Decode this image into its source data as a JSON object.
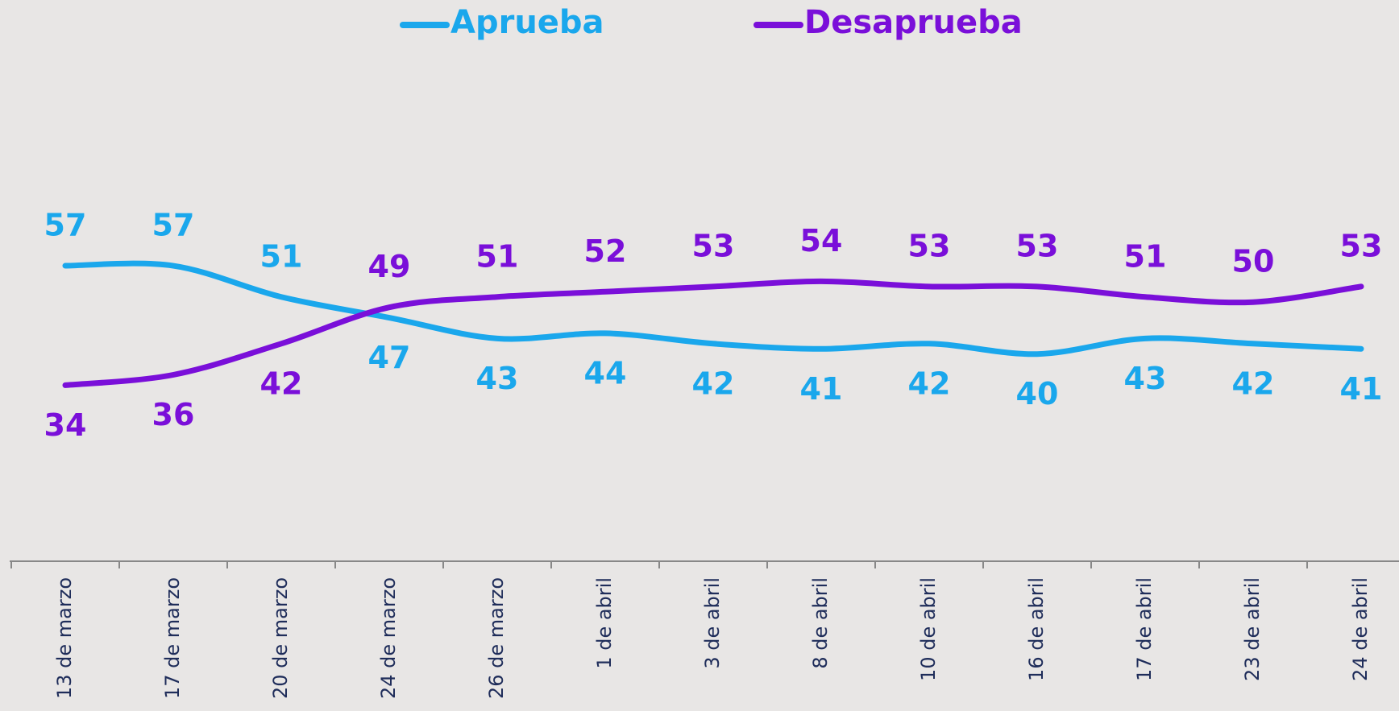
{
  "chart_data": {
    "type": "line",
    "categories": [
      "13 de marzo",
      "17 de marzo",
      "20 de marzo",
      "24 de marzo",
      "26 de marzo",
      "1 de abril",
      "3 de abril",
      "8 de abril",
      "10 de abril",
      "16 de abril",
      "17 de abril",
      "23 de abril",
      "24 de abril"
    ],
    "series": [
      {
        "name": "Aprueba",
        "color": "#1aa7ec",
        "values": [
          57,
          57,
          51,
          47,
          43,
          44,
          42,
          41,
          42,
          40,
          43,
          42,
          41
        ]
      },
      {
        "name": "Desaprueba",
        "color": "#7a0fd9",
        "values": [
          34,
          36,
          42,
          49,
          51,
          52,
          53,
          54,
          53,
          53,
          51,
          50,
          53
        ]
      }
    ],
    "legend": "top"
  }
}
